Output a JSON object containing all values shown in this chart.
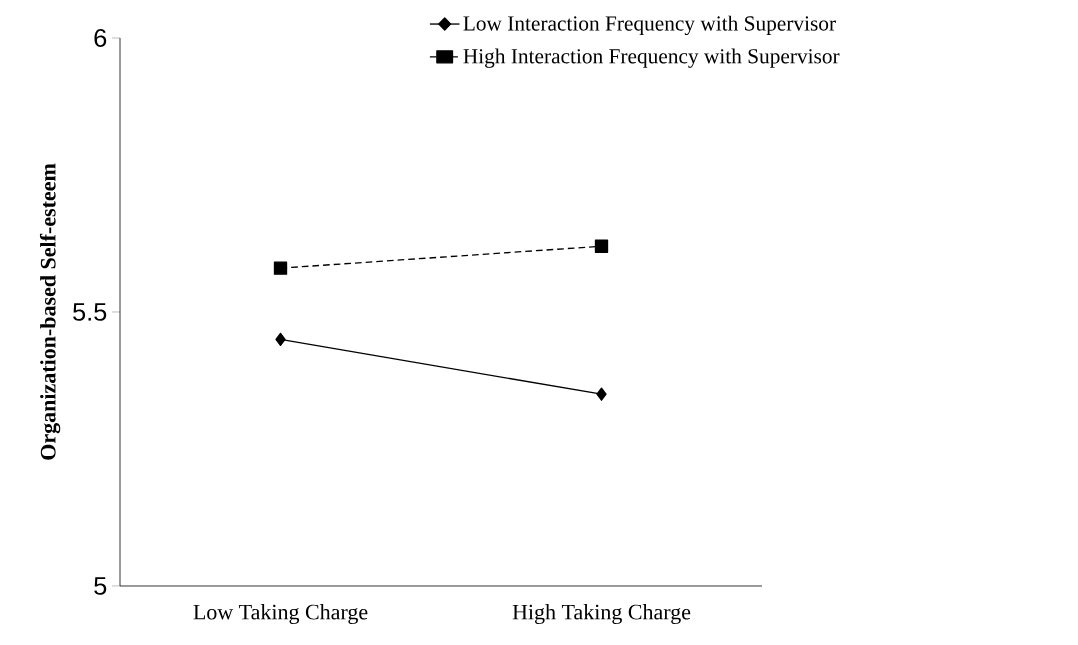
{
  "chart_data": {
    "type": "line",
    "ylabel": "Organization-based Self-esteem",
    "categories": [
      "Low Taking Charge",
      "High Taking Charge"
    ],
    "series": [
      {
        "name": "Low Interaction Frequency with Supervisor",
        "color": "#000000",
        "values": [
          5.45,
          5.35
        ],
        "marker": "diamond",
        "line_style": "solid"
      },
      {
        "name": "High Interaction Frequency with Supervisor",
        "color": "#000000",
        "values": [
          5.58,
          5.62
        ],
        "marker": "square",
        "line_style": "dashed"
      }
    ],
    "ylim": [
      5,
      6
    ],
    "yticks": [
      5,
      5.5,
      6
    ],
    "grid": false,
    "legend": "top right"
  }
}
